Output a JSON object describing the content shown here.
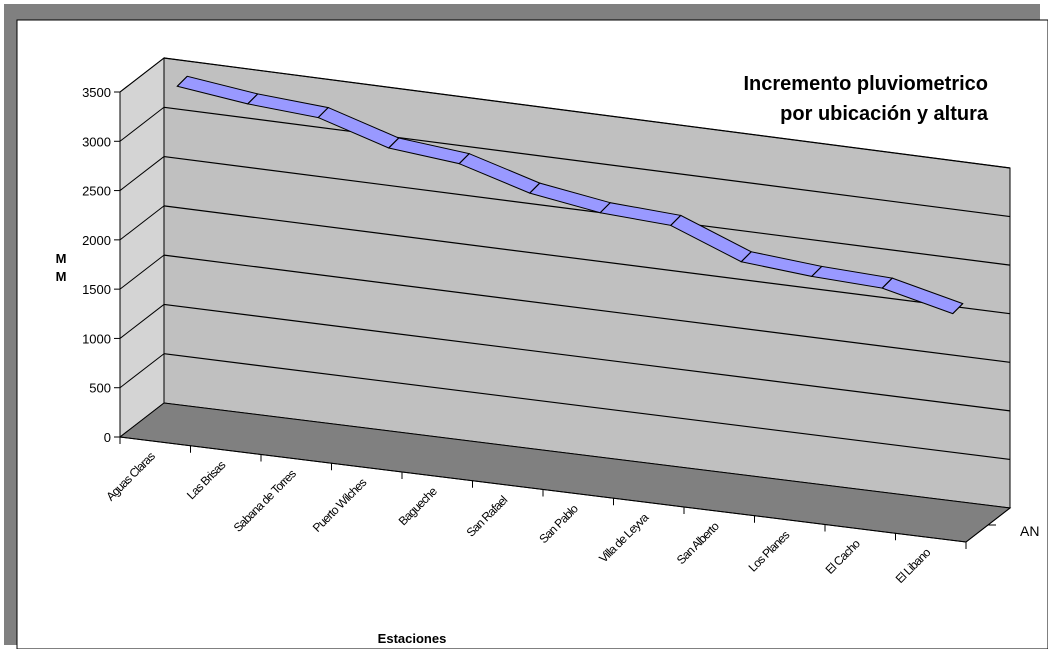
{
  "chart_data": {
    "type": "line",
    "title_line1": "Incremento pluviometrico",
    "title_line2": "por ubicación y altura",
    "xlabel": "Estaciones",
    "ylabel_chars": [
      "M",
      "M"
    ],
    "series_axis_label": "AN",
    "categories": [
      "Aguas Claras",
      "Las Brisas",
      "Sabana de Torres",
      "Puerto Wilches",
      "Bagueche",
      "San Rafael",
      "San Pablo",
      "Villa de Leyva",
      "San Alberto",
      "Los Planes",
      "El Cacho",
      "El Libano"
    ],
    "yticks": [
      "0",
      "500",
      "1000",
      "1500",
      "2000",
      "2500",
      "3000",
      "3500"
    ],
    "ylim": [
      0,
      3500
    ],
    "series": [
      {
        "values": [
          3430,
          3340,
          3290,
          3070,
          3000,
          2790,
          2680,
          2640,
          2360,
          2300,
          2270,
          2100
        ]
      }
    ],
    "grid": true,
    "colors": {
      "line": "#9999ff",
      "back_wall": "#c0c0c0",
      "side_wall": "#d4d4d4",
      "floor": "#808080",
      "frame": "#808080"
    }
  }
}
